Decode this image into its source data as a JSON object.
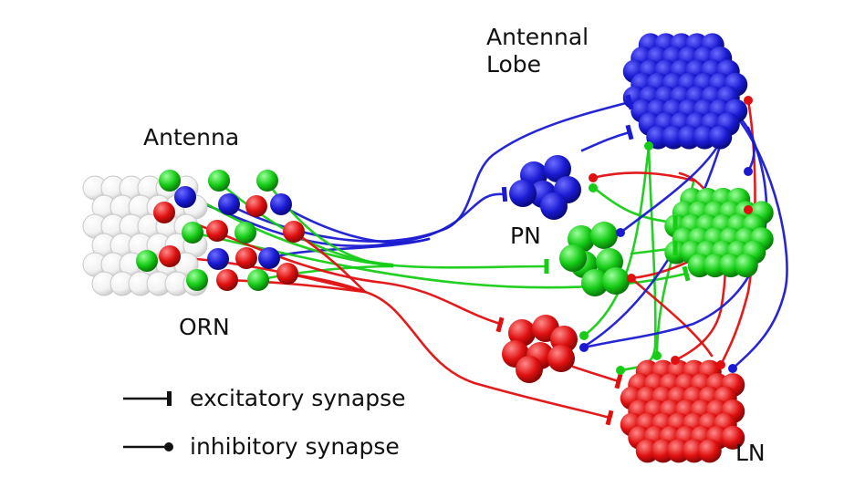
{
  "labels": {
    "antennal_lobe_line1": "Antennal",
    "antennal_lobe_line2": "Lobe",
    "antenna": "Antenna",
    "pn": "PN",
    "orn": "ORN",
    "ln": "LN"
  },
  "legend": {
    "excitatory": "excitatory synapse",
    "inhibitory": "inhibitory synapse"
  },
  "colors": {
    "blue": "#1a1ad2",
    "green": "#16cc16",
    "red": "#e01010",
    "gray": "#e8e8e8",
    "black": "#111111"
  },
  "icons": {
    "excitatory": "flat-bar-terminal",
    "inhibitory": "round-dot-terminal"
  }
}
